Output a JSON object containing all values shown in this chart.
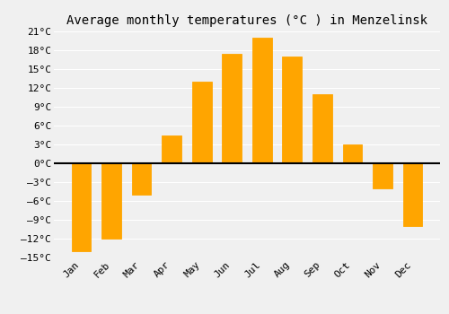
{
  "title": "Average monthly temperatures (°C ) in Menzelinsk",
  "months": [
    "Jan",
    "Feb",
    "Mar",
    "Apr",
    "May",
    "Jun",
    "Jul",
    "Aug",
    "Sep",
    "Oct",
    "Nov",
    "Dec"
  ],
  "temperatures": [
    -14,
    -12,
    -5,
    4.5,
    13,
    17.5,
    20,
    17,
    11,
    3,
    -4,
    -10
  ],
  "bar_color": "#FFA500",
  "bar_edge_color": "#999999",
  "background_color": "#f0f0f0",
  "grid_color": "#ffffff",
  "ylim": [
    -15,
    21
  ],
  "yticks": [
    -15,
    -12,
    -9,
    -6,
    -3,
    0,
    3,
    6,
    9,
    12,
    15,
    18,
    21
  ],
  "zero_line_color": "#000000",
  "title_fontsize": 10,
  "tick_fontsize": 8
}
